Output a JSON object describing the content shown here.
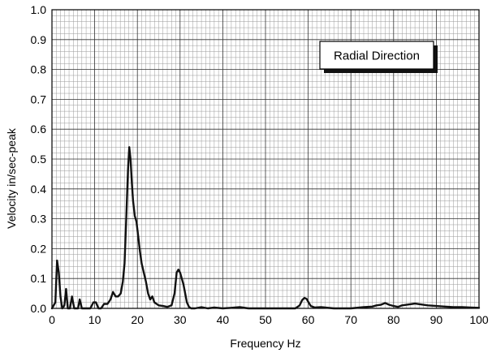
{
  "chart_data": {
    "type": "line",
    "xlabel": "Frequency Hz",
    "ylabel": "Velocity in/sec-peak",
    "xlim": [
      0,
      100
    ],
    "ylim": [
      0,
      1.0
    ],
    "x_ticks": [
      "0",
      "10",
      "20",
      "30",
      "40",
      "50",
      "60",
      "70",
      "80",
      "90",
      "100"
    ],
    "y_ticks": [
      "0.0",
      "0.1",
      "0.2",
      "0.3",
      "0.4",
      "0.5",
      "0.6",
      "0.7",
      "0.8",
      "0.9",
      "1.0"
    ],
    "grid": true,
    "legend": "Radial Direction",
    "legend_placement": "top-right",
    "series": [
      {
        "line_color": "#111111",
        "x": [
          0,
          0.8,
          1.2,
          1.6,
          2.0,
          2.4,
          2.9,
          3.3,
          3.7,
          4.2,
          4.7,
          5.2,
          5.6,
          6.1,
          6.5,
          7.0,
          8.0,
          9.0,
          9.7,
          10.3,
          10.9,
          11.5,
          12.2,
          13.0,
          13.7,
          14.3,
          14.9,
          15.5,
          16.1,
          16.6,
          17.0,
          17.4,
          17.8,
          18.1,
          18.4,
          18.7,
          19.0,
          19.4,
          19.8,
          20.2,
          20.6,
          21.0,
          21.5,
          22.0,
          22.5,
          23.0,
          23.5,
          24.0,
          25.0,
          26.0,
          27.0,
          28.0,
          28.7,
          29.2,
          29.6,
          30.0,
          30.4,
          30.8,
          31.2,
          31.6,
          32.1,
          32.6,
          33.5,
          35.0,
          36.5,
          38.0,
          40.0,
          42.0,
          44.0,
          46.0,
          50.0,
          54.0,
          57.0,
          58.0,
          58.6,
          59.1,
          59.6,
          60.1,
          60.6,
          61.5,
          63.0,
          66.0,
          70.0,
          73.0,
          75.0,
          76.0,
          77.0,
          78.0,
          79.0,
          80.0,
          81.0,
          82.0,
          83.0,
          84.0,
          85.0,
          86.0,
          87.0,
          88.0,
          89.0,
          90.0,
          92.0,
          94.0,
          96.0,
          98.0,
          100.0
        ],
        "y": [
          0.0,
          0.02,
          0.16,
          0.12,
          0.04,
          0.0,
          0.01,
          0.065,
          0.0,
          0.0,
          0.04,
          0.0,
          0.0,
          0.0,
          0.03,
          0.0,
          0.0,
          0.0,
          0.02,
          0.02,
          0.0,
          0.0,
          0.015,
          0.015,
          0.03,
          0.055,
          0.04,
          0.04,
          0.05,
          0.09,
          0.15,
          0.3,
          0.46,
          0.54,
          0.5,
          0.42,
          0.36,
          0.31,
          0.29,
          0.24,
          0.19,
          0.15,
          0.12,
          0.09,
          0.05,
          0.03,
          0.04,
          0.02,
          0.01,
          0.008,
          0.005,
          0.01,
          0.05,
          0.12,
          0.13,
          0.12,
          0.1,
          0.08,
          0.05,
          0.02,
          0.005,
          0.0,
          0.0,
          0.004,
          0.0,
          0.003,
          0.0,
          0.002,
          0.004,
          0.0,
          0.0,
          0.0,
          0.0,
          0.01,
          0.028,
          0.035,
          0.032,
          0.02,
          0.008,
          0.003,
          0.004,
          0.0,
          0.0,
          0.004,
          0.006,
          0.01,
          0.012,
          0.018,
          0.012,
          0.008,
          0.005,
          0.01,
          0.012,
          0.014,
          0.016,
          0.014,
          0.012,
          0.01,
          0.009,
          0.008,
          0.006,
          0.004,
          0.004,
          0.003,
          0.002
        ]
      }
    ]
  }
}
